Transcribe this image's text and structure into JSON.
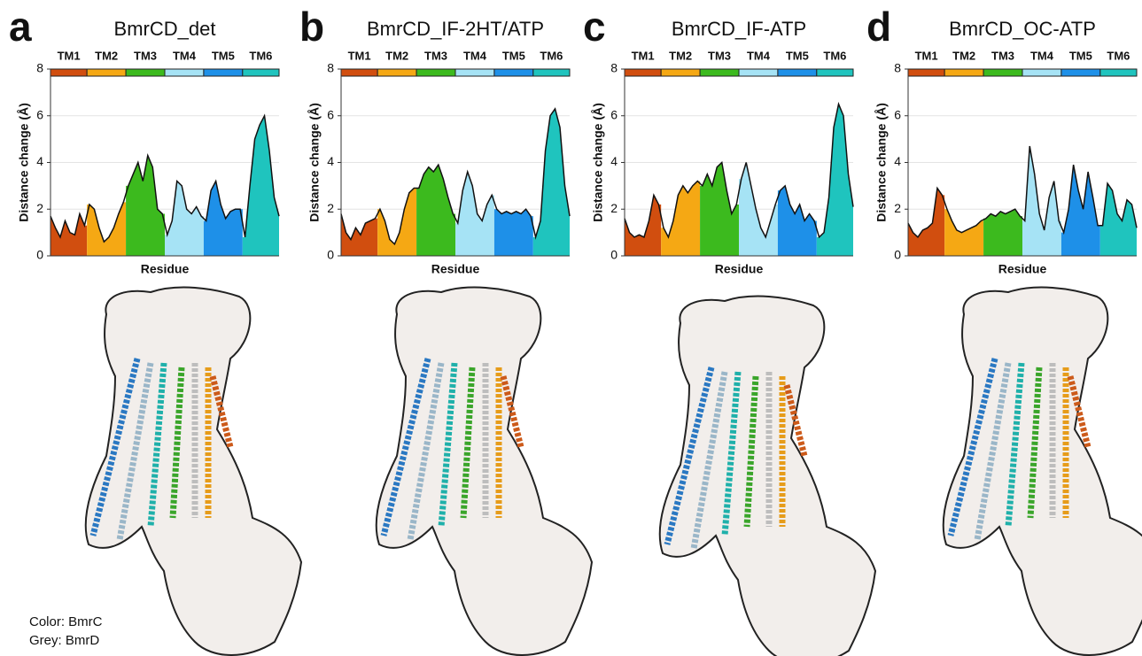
{
  "chart_data": [
    {
      "type": "area",
      "label": "a",
      "title": "BmrCD_det",
      "y_label": "Distance change (Å)",
      "x_label": "Residue",
      "ylim": [
        0,
        8
      ],
      "yticks": [
        0,
        2,
        4,
        6,
        8
      ],
      "grid": true,
      "series": [
        {
          "name": "TM1",
          "color": "#d14e0f",
          "values": [
            1.7,
            1.2,
            0.8,
            1.5,
            1.0,
            0.9,
            1.8,
            1.3
          ]
        },
        {
          "name": "TM2",
          "color": "#f5a814",
          "values": [
            2.2,
            2.0,
            1.2,
            0.6,
            0.8,
            1.2,
            1.8,
            2.3
          ]
        },
        {
          "name": "TM3",
          "color": "#3cba1e",
          "values": [
            3.0,
            3.5,
            4.0,
            3.2,
            4.3,
            3.8,
            2.0,
            1.8
          ]
        },
        {
          "name": "TM4",
          "color": "#a6e3f5",
          "values": [
            0.9,
            1.5,
            3.2,
            3.0,
            2.0,
            1.8,
            2.1,
            1.7
          ]
        },
        {
          "name": "TM5",
          "color": "#1e90e8",
          "values": [
            1.5,
            2.8,
            3.2,
            2.2,
            1.6,
            1.9,
            2.0,
            2.0
          ]
        },
        {
          "name": "TM6",
          "color": "#1fc4be",
          "values": [
            0.8,
            3.0,
            5.0,
            5.6,
            6.0,
            4.5,
            2.5,
            1.7
          ]
        }
      ]
    },
    {
      "type": "area",
      "label": "b",
      "title": "BmrCD_IF-2HT/ATP",
      "y_label": "Distance change (Å)",
      "x_label": "Residue",
      "ylim": [
        0,
        8
      ],
      "yticks": [
        0,
        2,
        4,
        6,
        8
      ],
      "grid": true,
      "series": [
        {
          "name": "TM1",
          "color": "#d14e0f",
          "values": [
            1.8,
            1.0,
            0.7,
            1.2,
            0.9,
            1.4,
            1.5,
            1.6
          ]
        },
        {
          "name": "TM2",
          "color": "#f5a814",
          "values": [
            2.0,
            1.5,
            0.7,
            0.5,
            1.0,
            2.0,
            2.7,
            2.9
          ]
        },
        {
          "name": "TM3",
          "color": "#3cba1e",
          "values": [
            2.9,
            3.5,
            3.8,
            3.6,
            3.9,
            3.3,
            2.5,
            1.8
          ]
        },
        {
          "name": "TM4",
          "color": "#a6e3f5",
          "values": [
            1.4,
            2.8,
            3.6,
            3.0,
            1.8,
            1.5,
            2.2,
            2.6
          ]
        },
        {
          "name": "TM5",
          "color": "#1e90e8",
          "values": [
            2.0,
            1.8,
            1.9,
            1.8,
            1.9,
            1.8,
            2.0,
            1.7
          ]
        },
        {
          "name": "TM6",
          "color": "#1fc4be",
          "values": [
            0.8,
            1.5,
            4.5,
            6.0,
            6.3,
            5.5,
            3.0,
            1.7
          ]
        }
      ]
    },
    {
      "type": "area",
      "label": "c",
      "title": "BmrCD_IF-ATP",
      "y_label": "Distance change (Å)",
      "x_label": "Residue",
      "ylim": [
        0,
        8
      ],
      "yticks": [
        0,
        2,
        4,
        6,
        8
      ],
      "grid": true,
      "series": [
        {
          "name": "TM1",
          "color": "#d14e0f",
          "values": [
            1.6,
            1.0,
            0.8,
            0.9,
            0.8,
            1.5,
            2.6,
            2.2
          ]
        },
        {
          "name": "TM2",
          "color": "#f5a814",
          "values": [
            1.2,
            0.8,
            1.5,
            2.6,
            3.0,
            2.7,
            3.0,
            3.2
          ]
        },
        {
          "name": "TM3",
          "color": "#3cba1e",
          "values": [
            3.0,
            3.5,
            3.0,
            3.8,
            4.0,
            2.8,
            1.8,
            2.2
          ]
        },
        {
          "name": "TM4",
          "color": "#a6e3f5",
          "values": [
            3.3,
            4.0,
            3.0,
            2.0,
            1.2,
            0.8,
            1.5,
            2.2
          ]
        },
        {
          "name": "TM5",
          "color": "#1e90e8",
          "values": [
            2.8,
            3.0,
            2.2,
            1.8,
            2.2,
            1.5,
            1.8,
            1.5
          ]
        },
        {
          "name": "TM6",
          "color": "#1fc4be",
          "values": [
            0.8,
            1.0,
            2.5,
            5.5,
            6.5,
            6.0,
            3.5,
            2.1
          ]
        }
      ]
    },
    {
      "type": "area",
      "label": "d",
      "title": "BmrCD_OC-ATP",
      "y_label": "Distance change (Å)",
      "x_label": "Residue",
      "ylim": [
        0,
        8
      ],
      "yticks": [
        0,
        2,
        4,
        6,
        8
      ],
      "grid": true,
      "series": [
        {
          "name": "TM1",
          "color": "#d14e0f",
          "values": [
            1.4,
            1.0,
            0.8,
            1.1,
            1.2,
            1.4,
            2.9,
            2.6
          ]
        },
        {
          "name": "TM2",
          "color": "#f5a814",
          "values": [
            2.0,
            1.5,
            1.1,
            1.0,
            1.1,
            1.2,
            1.3,
            1.5
          ]
        },
        {
          "name": "TM3",
          "color": "#3cba1e",
          "values": [
            1.6,
            1.8,
            1.7,
            1.9,
            1.8,
            1.9,
            2.0,
            1.7
          ]
        },
        {
          "name": "TM4",
          "color": "#a6e3f5",
          "values": [
            1.5,
            4.7,
            3.5,
            1.8,
            1.1,
            2.5,
            3.2,
            1.5
          ]
        },
        {
          "name": "TM5",
          "color": "#1e90e8",
          "values": [
            1.0,
            2.0,
            3.9,
            2.8,
            2.0,
            3.6,
            2.5,
            1.3
          ]
        },
        {
          "name": "TM6",
          "color": "#1fc4be",
          "values": [
            1.3,
            3.1,
            2.8,
            1.8,
            1.5,
            2.4,
            2.2,
            1.2
          ]
        }
      ]
    }
  ],
  "annotations": [
    "Color: BmrC",
    "Grey:  BmrD"
  ]
}
